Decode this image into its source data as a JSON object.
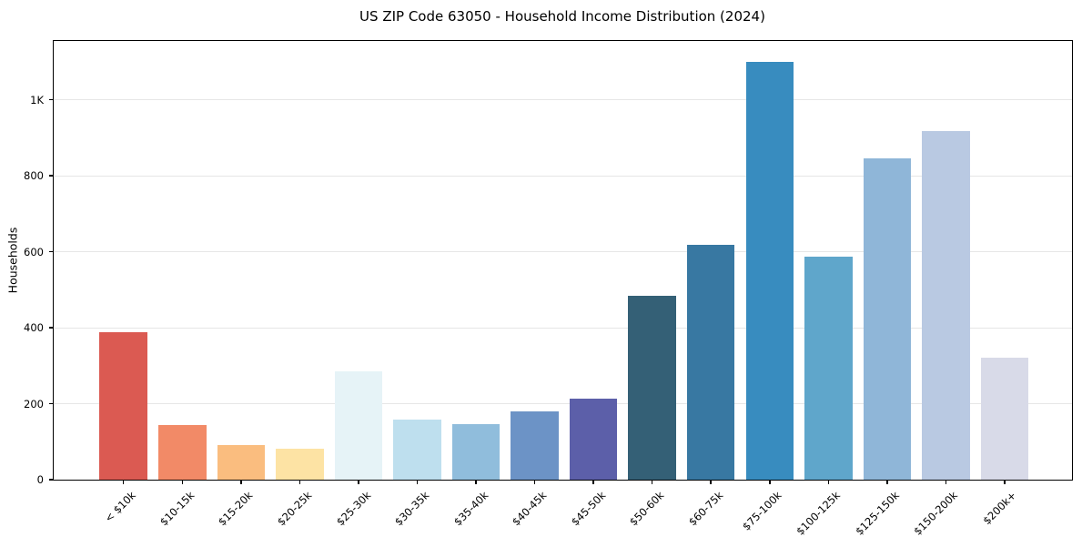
{
  "chart_data": {
    "type": "bar",
    "title": "US ZIP Code 63050 - Household Income Distribution (2024)",
    "xlabel": "",
    "ylabel": "Households",
    "categories": [
      "< $10k",
      "$10-15k",
      "$15-20k",
      "$20-25k",
      "$25-30k",
      "$30-35k",
      "$35-40k",
      "$40-45k",
      "$45-50k",
      "$50-60k",
      "$60-75k",
      "$75-100k",
      "$100-125k",
      "$125-150k",
      "$150-200k",
      "$200k+"
    ],
    "values": [
      388,
      143,
      90,
      81,
      284,
      158,
      147,
      179,
      213,
      485,
      619,
      1100,
      587,
      847,
      917,
      322
    ],
    "bar_colors": [
      "#db5a52",
      "#f28a67",
      "#fabd7f",
      "#fde3a4",
      "#e6f3f7",
      "#bedfee",
      "#90bddc",
      "#6c93c6",
      "#5c5fa9",
      "#346076",
      "#3878a2",
      "#388cbf",
      "#5fa6cb",
      "#8fb6d8",
      "#b9c9e2",
      "#d8dae8"
    ],
    "yticks": [
      {
        "value": 0,
        "label": "0"
      },
      {
        "value": 200,
        "label": "200"
      },
      {
        "value": 400,
        "label": "400"
      },
      {
        "value": 600,
        "label": "600"
      },
      {
        "value": 800,
        "label": "800"
      },
      {
        "value": 1000,
        "label": "1K"
      }
    ],
    "ylim": [
      0,
      1155
    ],
    "grid": "horizontal",
    "legend": "none",
    "background": "#ffffff",
    "grid_color": "#e6e6e6",
    "axis_color": "#000000"
  }
}
